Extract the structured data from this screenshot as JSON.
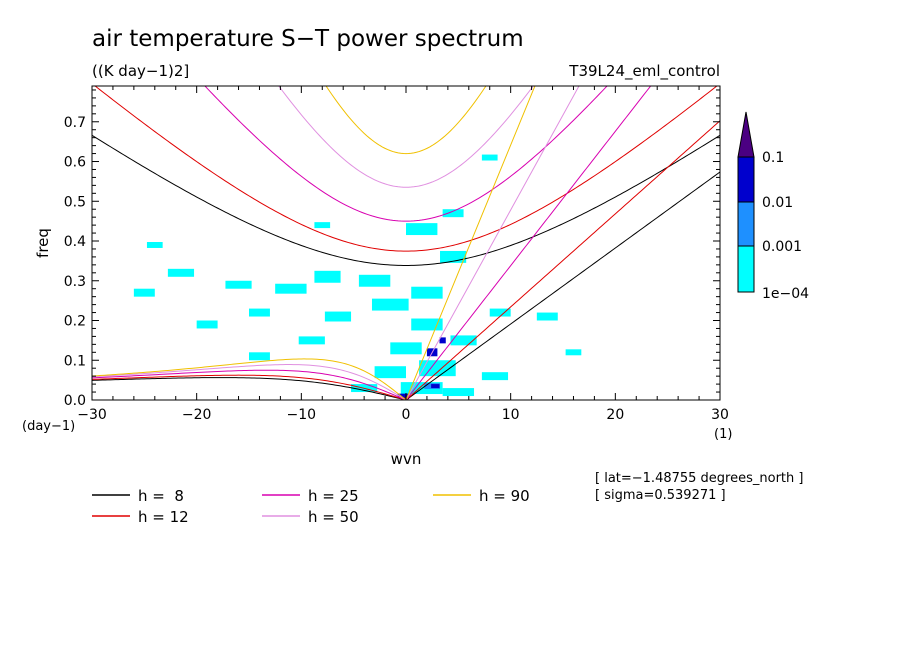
{
  "chart_data": {
    "type": "contour",
    "title": "air temperature S−T power spectrum",
    "units_label": "((K day−1)2]",
    "run_label": "T39L24_eml_control",
    "xlabel": "wvn",
    "ylabel": "freq",
    "y_unit_label": "(day−1)",
    "x_unit_label": "(1)",
    "xlim": [
      -30,
      30
    ],
    "ylim": [
      0,
      0.79
    ],
    "xticks": [
      -30,
      -20,
      -10,
      0,
      10,
      20,
      30
    ],
    "xtick_labels": [
      "−30",
      "−20",
      "−10",
      "0",
      "10",
      "20",
      "30"
    ],
    "yticks": [
      0.0,
      0.1,
      0.2,
      0.3,
      0.4,
      0.5,
      0.6,
      0.7
    ],
    "ytick_labels": [
      "0.0",
      "0.1",
      "0.2",
      "0.3",
      "0.4",
      "0.5",
      "0.6",
      "0.7"
    ],
    "colorbar": {
      "labels": [
        "0.1",
        "0.01",
        "0.001",
        "1e−04"
      ],
      "colors": [
        "#00ffff",
        "#1e90ff",
        "#0000cd",
        "#4b0082"
      ]
    },
    "info_lines": [
      "[ lat=−1.48755 degrees_north ]",
      "[ sigma=0.539271 ]"
    ],
    "series": [
      {
        "name": "h =  8",
        "h": 8,
        "color": "#000000"
      },
      {
        "name": "h = 12",
        "h": 12,
        "color": "#e00000"
      },
      {
        "name": "h = 25",
        "h": 25,
        "color": "#d800b0"
      },
      {
        "name": "h = 50",
        "h": 50,
        "color": "#e090e0"
      },
      {
        "name": "h = 90",
        "h": 90,
        "color": "#f0c000"
      }
    ],
    "contour_patches": [
      {
        "x": -7.5,
        "y": 0.31,
        "w": 2.5,
        "h": 0.03,
        "level": 1
      },
      {
        "x": -3,
        "y": 0.3,
        "w": 3.0,
        "h": 0.03,
        "level": 1
      },
      {
        "x": 2,
        "y": 0.27,
        "w": 3.0,
        "h": 0.03,
        "level": 1
      },
      {
        "x": 4.5,
        "y": 0.36,
        "w": 2.5,
        "h": 0.03,
        "level": 1
      },
      {
        "x": -1.5,
        "y": 0.24,
        "w": 3.5,
        "h": 0.03,
        "level": 1
      },
      {
        "x": 2,
        "y": 0.19,
        "w": 3.0,
        "h": 0.03,
        "level": 1
      },
      {
        "x": -6.5,
        "y": 0.21,
        "w": 2.5,
        "h": 0.025,
        "level": 1
      },
      {
        "x": -11,
        "y": 0.28,
        "w": 3.0,
        "h": 0.025,
        "level": 1
      },
      {
        "x": -16,
        "y": 0.29,
        "w": 2.5,
        "h": 0.02,
        "level": 1
      },
      {
        "x": -21.5,
        "y": 0.32,
        "w": 2.5,
        "h": 0.02,
        "level": 1
      },
      {
        "x": -25,
        "y": 0.27,
        "w": 2.0,
        "h": 0.02,
        "level": 1
      },
      {
        "x": -14,
        "y": 0.22,
        "w": 2.0,
        "h": 0.02,
        "level": 1
      },
      {
        "x": -19,
        "y": 0.19,
        "w": 2.0,
        "h": 0.02,
        "level": 1
      },
      {
        "x": -9,
        "y": 0.15,
        "w": 2.5,
        "h": 0.02,
        "level": 1
      },
      {
        "x": 0,
        "y": 0.13,
        "w": 3.0,
        "h": 0.03,
        "level": 1
      },
      {
        "x": 5.5,
        "y": 0.15,
        "w": 2.5,
        "h": 0.025,
        "level": 1
      },
      {
        "x": 9,
        "y": 0.22,
        "w": 2.0,
        "h": 0.02,
        "level": 1
      },
      {
        "x": 13.5,
        "y": 0.21,
        "w": 2.0,
        "h": 0.02,
        "level": 1
      },
      {
        "x": 16,
        "y": 0.12,
        "w": 1.5,
        "h": 0.015,
        "level": 1
      },
      {
        "x": 3,
        "y": 0.08,
        "w": 3.5,
        "h": 0.04,
        "level": 1
      },
      {
        "x": -1.5,
        "y": 0.07,
        "w": 3.0,
        "h": 0.03,
        "level": 1
      },
      {
        "x": 1.5,
        "y": 0.03,
        "w": 4.0,
        "h": 0.03,
        "level": 1
      },
      {
        "x": -4,
        "y": 0.03,
        "w": 2.5,
        "h": 0.02,
        "level": 1
      },
      {
        "x": 5,
        "y": 0.02,
        "w": 3.0,
        "h": 0.02,
        "level": 1
      },
      {
        "x": 1.5,
        "y": 0.43,
        "w": 3.0,
        "h": 0.03,
        "level": 1
      },
      {
        "x": 4.5,
        "y": 0.47,
        "w": 2.0,
        "h": 0.02,
        "level": 1
      },
      {
        "x": -8,
        "y": 0.44,
        "w": 1.5,
        "h": 0.015,
        "level": 1
      },
      {
        "x": -24,
        "y": 0.39,
        "w": 1.5,
        "h": 0.015,
        "level": 1
      },
      {
        "x": 8,
        "y": 0.61,
        "w": 1.5,
        "h": 0.015,
        "level": 1
      },
      {
        "x": -14,
        "y": 0.11,
        "w": 2.0,
        "h": 0.02,
        "level": 1
      },
      {
        "x": 8.5,
        "y": 0.06,
        "w": 2.5,
        "h": 0.02,
        "level": 1
      },
      {
        "x": 2.5,
        "y": 0.12,
        "w": 1.0,
        "h": 0.02,
        "level": 3
      },
      {
        "x": 3.5,
        "y": 0.15,
        "w": 0.6,
        "h": 0.015,
        "level": 3
      },
      {
        "x": 2.5,
        "y": 0.035,
        "w": 1.5,
        "h": 0.015,
        "level": 2
      },
      {
        "x": 2.8,
        "y": 0.035,
        "w": 0.8,
        "h": 0.01,
        "level": 3
      },
      {
        "x": -0.3,
        "y": 0.01,
        "w": 1.0,
        "h": 0.012,
        "level": 3
      },
      {
        "x": 0.0,
        "y": 0.005,
        "w": 0.6,
        "h": 0.006,
        "level": 4
      }
    ]
  }
}
